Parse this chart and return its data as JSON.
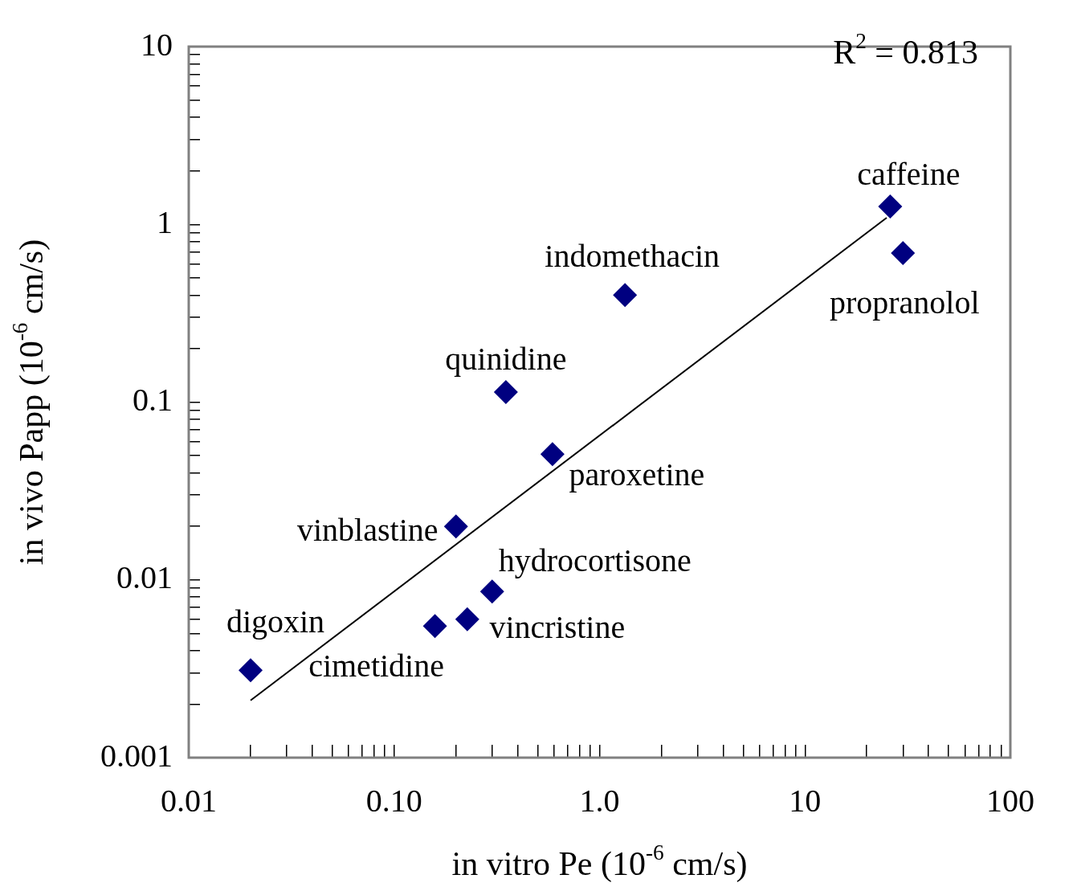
{
  "chart_data": {
    "type": "scatter",
    "xlabel": "in vitro Pe (10$^{-6}$ cm/s)",
    "ylabel": "in vivo Papp (10$^{-6}$ cm/s)",
    "log": "xy",
    "xlim": [
      0.01,
      100
    ],
    "ylim": [
      0.001,
      10
    ],
    "xticks": [
      {
        "value": 0.01,
        "label": "0.01"
      },
      {
        "value": 0.02,
        "label": null
      },
      {
        "value": 0.03,
        "label": null
      },
      {
        "value": 0.04,
        "label": null
      },
      {
        "value": 0.05,
        "label": null
      },
      {
        "value": 0.06,
        "label": null
      },
      {
        "value": 0.07,
        "label": null
      },
      {
        "value": 0.08,
        "label": null
      },
      {
        "value": 0.09,
        "label": null
      },
      {
        "value": 0.1,
        "label": "0.10"
      },
      {
        "value": 0.2,
        "label": null
      },
      {
        "value": 0.3,
        "label": null
      },
      {
        "value": 0.4,
        "label": null
      },
      {
        "value": 0.5,
        "label": null
      },
      {
        "value": 0.6,
        "label": null
      },
      {
        "value": 0.7,
        "label": null
      },
      {
        "value": 0.8,
        "label": null
      },
      {
        "value": 0.9,
        "label": null
      },
      {
        "value": 1,
        "label": "1.0"
      },
      {
        "value": 2,
        "label": null
      },
      {
        "value": 3,
        "label": null
      },
      {
        "value": 4,
        "label": null
      },
      {
        "value": 5,
        "label": null
      },
      {
        "value": 6,
        "label": null
      },
      {
        "value": 7,
        "label": null
      },
      {
        "value": 8,
        "label": null
      },
      {
        "value": 9,
        "label": null
      },
      {
        "value": 10,
        "label": "10"
      },
      {
        "value": 20,
        "label": null
      },
      {
        "value": 30,
        "label": null
      },
      {
        "value": 40,
        "label": null
      },
      {
        "value": 50,
        "label": null
      },
      {
        "value": 60,
        "label": null
      },
      {
        "value": 70,
        "label": null
      },
      {
        "value": 80,
        "label": null
      },
      {
        "value": 90,
        "label": null
      },
      {
        "value": 100,
        "label": "100"
      }
    ],
    "yticks": [
      0.001,
      {
        "value": 0.002,
        "label": null
      },
      {
        "value": 0.003,
        "label": null
      },
      {
        "value": 0.004,
        "label": null
      },
      {
        "value": 0.005,
        "label": null
      },
      {
        "value": 0.006,
        "label": null
      },
      {
        "value": 0.007,
        "label": null
      },
      {
        "value": 0.008,
        "label": null
      },
      {
        "value": 0.009,
        "label": null
      },
      0.01,
      {
        "value": 0.02,
        "label": null
      },
      {
        "value": 0.03,
        "label": null
      },
      {
        "value": 0.04,
        "label": null
      },
      {
        "value": 0.05,
        "label": null
      },
      {
        "value": 0.06,
        "label": null
      },
      {
        "value": 0.07,
        "label": null
      },
      {
        "value": 0.08,
        "label": null
      },
      {
        "value": 0.09,
        "label": null
      },
      0.1,
      {
        "value": 0.2,
        "label": null
      },
      {
        "value": 0.3,
        "label": null
      },
      {
        "value": 0.4,
        "label": null
      },
      {
        "value": 0.5,
        "label": null
      },
      {
        "value": 0.6,
        "label": null
      },
      {
        "value": 0.7,
        "label": null
      },
      {
        "value": 0.8,
        "label": null
      },
      {
        "value": 0.9,
        "label": null
      },
      1,
      {
        "value": 2,
        "label": null
      },
      {
        "value": 3,
        "label": null
      },
      {
        "value": 4,
        "label": null
      },
      {
        "value": 5,
        "label": null
      },
      {
        "value": 6,
        "label": null
      },
      {
        "value": 7,
        "label": null
      },
      {
        "value": 8,
        "label": null
      },
      {
        "value": 9,
        "label": null
      },
      10
    ],
    "grid": false,
    "legend": false,
    "marker": "diamond",
    "series": [
      {
        "color": "#000080",
        "x": [
          0.02,
          0.158,
          0.227,
          0.3,
          0.2,
          0.59,
          0.35,
          1.33,
          26,
          30
        ],
        "values": [
          0.0031,
          0.0055,
          0.006,
          0.0086,
          0.02,
          0.051,
          0.114,
          0.4,
          1.26,
          0.69
        ]
      },
      {
        "type": "line",
        "color": "#000000",
        "line_style": "solid",
        "marker": "none",
        "x": [
          0.02,
          25
        ],
        "values": [
          0.0021,
          1.09
        ]
      }
    ],
    "annotations": [
      "R$^{2}$ = 0.813",
      {
        "text": "digoxin",
        "x": 0.02,
        "y": 0.0031
      },
      {
        "text": "cimetidine",
        "x": 0.158,
        "y": 0.0055
      },
      {
        "text": "vincristine",
        "x": 0.227,
        "y": 0.006
      },
      {
        "text": "hydrocortisone",
        "x": 0.3,
        "y": 0.0086
      },
      {
        "text": "vinblastine",
        "x": 0.2,
        "y": 0.02
      },
      {
        "text": "paroxetine",
        "x": 0.59,
        "y": 0.051
      },
      {
        "text": "quinidine",
        "x": 0.35,
        "y": 0.114
      },
      {
        "text": "indomethacin",
        "x": 1.33,
        "y": 0.4
      },
      {
        "text": "caffeine",
        "x": 26,
        "y": 1.26
      },
      {
        "text": "propranolol",
        "x": 30,
        "y": 0.69
      }
    ]
  }
}
